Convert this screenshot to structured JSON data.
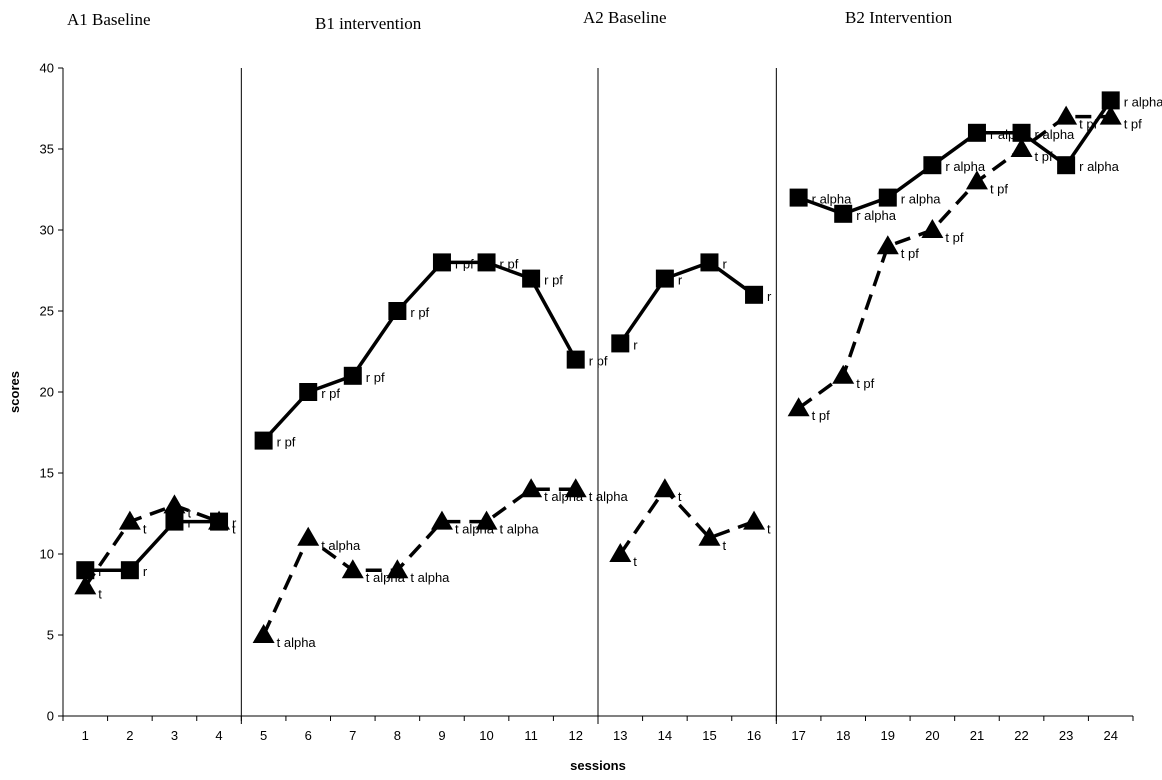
{
  "chart_data": {
    "type": "line",
    "xlabel": "sessions",
    "ylabel": "scores",
    "ylim": [
      0,
      40
    ],
    "y_ticks": [
      0,
      5,
      10,
      15,
      20,
      25,
      30,
      35,
      40
    ],
    "x_ticks": [
      1,
      2,
      3,
      4,
      5,
      6,
      7,
      8,
      9,
      10,
      11,
      12,
      13,
      14,
      15,
      16,
      17,
      18,
      19,
      20,
      21,
      22,
      23,
      24
    ],
    "grid": false,
    "legend": "none",
    "phases": [
      {
        "label": "A1 Baseline",
        "sessions": [
          1,
          4
        ]
      },
      {
        "label": "B1 intervention",
        "sessions": [
          5,
          12
        ]
      },
      {
        "label": "A2 Baseline",
        "sessions": [
          13,
          16
        ]
      },
      {
        "label": "B2 Intervention",
        "sessions": [
          17,
          24
        ]
      }
    ],
    "phase_boundaries": [
      4.5,
      12.5,
      16.5
    ],
    "series": [
      {
        "marker": "square",
        "line_style": "solid",
        "color": "#000000",
        "segments": [
          [
            {
              "x": 1,
              "y": 9,
              "label": "r"
            },
            {
              "x": 2,
              "y": 9,
              "label": "r"
            },
            {
              "x": 3,
              "y": 12,
              "label": "r"
            },
            {
              "x": 4,
              "y": 12,
              "label": "r"
            }
          ],
          [
            {
              "x": 5,
              "y": 17,
              "label": "r pf"
            },
            {
              "x": 6,
              "y": 20,
              "label": "r pf"
            },
            {
              "x": 7,
              "y": 21,
              "label": "r pf"
            },
            {
              "x": 8,
              "y": 25,
              "label": "r pf"
            },
            {
              "x": 9,
              "y": 28,
              "label": "r pf"
            },
            {
              "x": 10,
              "y": 28,
              "label": "r pf"
            },
            {
              "x": 11,
              "y": 27,
              "label": "r pf"
            },
            {
              "x": 12,
              "y": 22,
              "label": "r pf"
            }
          ],
          [
            {
              "x": 13,
              "y": 23,
              "label": "r"
            },
            {
              "x": 14,
              "y": 27,
              "label": "r"
            },
            {
              "x": 15,
              "y": 28,
              "label": "r"
            },
            {
              "x": 16,
              "y": 26,
              "label": "r"
            }
          ],
          [
            {
              "x": 17,
              "y": 32,
              "label": "r alpha"
            },
            {
              "x": 18,
              "y": 31,
              "label": "r alpha"
            },
            {
              "x": 19,
              "y": 32,
              "label": "r alpha"
            },
            {
              "x": 20,
              "y": 34,
              "label": "r alpha"
            },
            {
              "x": 21,
              "y": 36,
              "label": "r alpha"
            },
            {
              "x": 22,
              "y": 36,
              "label": "r alpha"
            },
            {
              "x": 23,
              "y": 34,
              "label": "r alpha"
            },
            {
              "x": 24,
              "y": 38,
              "label": "r alpha"
            }
          ]
        ]
      },
      {
        "marker": "triangle",
        "line_style": "dashed",
        "color": "#000000",
        "segments": [
          [
            {
              "x": 1,
              "y": 8,
              "label": "t"
            },
            {
              "x": 2,
              "y": 12,
              "label": "t"
            },
            {
              "x": 3,
              "y": 13,
              "label": "t"
            },
            {
              "x": 4,
              "y": 12,
              "label": "t"
            }
          ],
          [
            {
              "x": 5,
              "y": 5,
              "label": "t alpha"
            },
            {
              "x": 6,
              "y": 11,
              "label": "t alpha"
            },
            {
              "x": 7,
              "y": 9,
              "label": "t alpha"
            },
            {
              "x": 8,
              "y": 9,
              "label": "t alpha"
            },
            {
              "x": 9,
              "y": 12,
              "label": "t alpha"
            },
            {
              "x": 10,
              "y": 12,
              "label": "t alpha"
            },
            {
              "x": 11,
              "y": 14,
              "label": "t alpha"
            },
            {
              "x": 12,
              "y": 14,
              "label": "t alpha"
            }
          ],
          [
            {
              "x": 13,
              "y": 10,
              "label": "t"
            },
            {
              "x": 14,
              "y": 14,
              "label": "t"
            },
            {
              "x": 15,
              "y": 11,
              "label": "t"
            },
            {
              "x": 16,
              "y": 12,
              "label": "t"
            }
          ],
          [
            {
              "x": 17,
              "y": 19,
              "label": "t pf"
            },
            {
              "x": 18,
              "y": 21,
              "label": "t pf"
            },
            {
              "x": 19,
              "y": 29,
              "label": "t pf"
            },
            {
              "x": 20,
              "y": 30,
              "label": "t pf"
            },
            {
              "x": 21,
              "y": 33,
              "label": "t pf"
            },
            {
              "x": 22,
              "y": 35,
              "label": "t pf"
            },
            {
              "x": 23,
              "y": 37,
              "label": "t pf"
            },
            {
              "x": 24,
              "y": 37,
              "label": "t pf"
            }
          ]
        ]
      }
    ]
  }
}
